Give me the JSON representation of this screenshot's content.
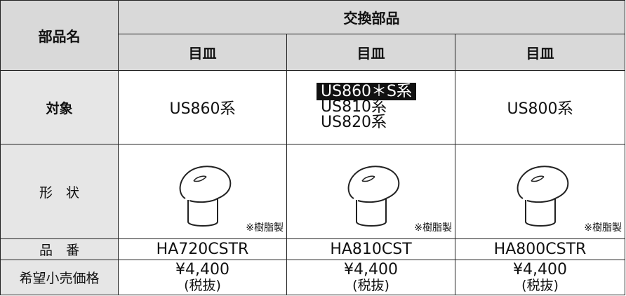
{
  "header": {
    "part_name": "部品名",
    "group": "交換部品",
    "columns": [
      "目皿",
      "目皿",
      "目皿"
    ]
  },
  "rows": {
    "target": {
      "label": "対象",
      "cells": [
        "US860系",
        [
          "US860＊S系",
          "US810系",
          "US820系"
        ],
        "US800系"
      ]
    },
    "shape": {
      "label": "形　状",
      "notes": [
        "※樹脂製",
        "※樹脂製",
        "※樹脂製"
      ]
    },
    "part_number": {
      "label": "品　番",
      "cells": [
        "HA720CSTR",
        "HA810CST",
        "HA800CSTR"
      ]
    },
    "price": {
      "label": "希望小売価格",
      "cells": [
        {
          "amount": "¥4,400",
          "note": "(税抜)"
        },
        {
          "amount": "¥4,400",
          "note": "(税抜)"
        },
        {
          "amount": "¥4,400",
          "note": "(税抜)"
        }
      ]
    }
  }
}
